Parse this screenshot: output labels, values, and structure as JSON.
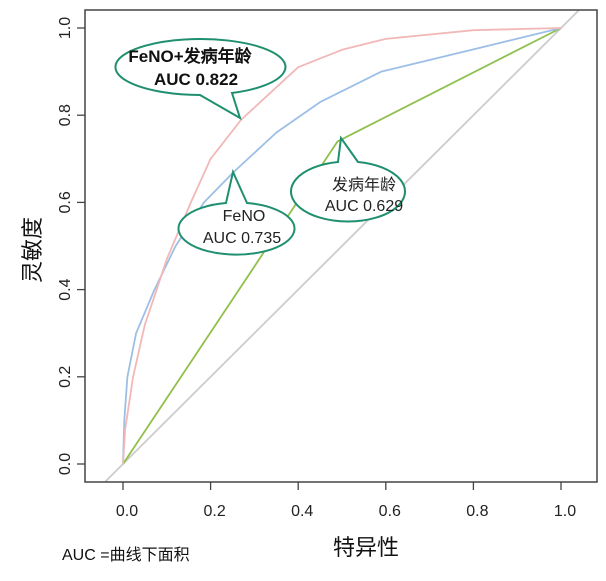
{
  "chart_data": {
    "type": "line",
    "title": "",
    "xlabel": "特异性",
    "ylabel": "灵敏度",
    "xlim": [
      -0.04,
      1.04
    ],
    "ylim": [
      -0.05,
      1.05
    ],
    "xticks": [
      "0.0",
      "0.2",
      "0.4",
      "0.6",
      "0.8",
      "1.0"
    ],
    "yticks": [
      "0.0",
      "0.2",
      "0.4",
      "0.6",
      "0.8",
      "1.0"
    ],
    "grid": false,
    "footnote": "AUC =曲线下面积",
    "colors": {
      "combined": "#f2b8b8",
      "feno": "#9dbfe6",
      "age": "#8fbf4d",
      "reference": "#cccccc",
      "callout": "#1f8f6f"
    },
    "series": [
      {
        "name": "FeNO+发病年龄",
        "auc_label": "AUC 0.822",
        "color": "#f2b8b8",
        "points": [
          [
            0,
            0
          ],
          [
            0.005,
            0.08
          ],
          [
            0.023,
            0.2
          ],
          [
            0.05,
            0.32
          ],
          [
            0.077,
            0.4
          ],
          [
            0.1,
            0.47
          ],
          [
            0.155,
            0.6
          ],
          [
            0.2,
            0.7
          ],
          [
            0.27,
            0.79
          ],
          [
            0.4,
            0.91
          ],
          [
            0.5,
            0.95
          ],
          [
            0.6,
            0.975
          ],
          [
            0.8,
            0.995
          ],
          [
            1,
            1
          ]
        ]
      },
      {
        "name": "FeNO",
        "auc_label": "AUC 0.735",
        "color": "#9dbfe6",
        "points": [
          [
            0,
            0
          ],
          [
            0.003,
            0.1
          ],
          [
            0.01,
            0.2
          ],
          [
            0.03,
            0.3
          ],
          [
            0.072,
            0.4
          ],
          [
            0.12,
            0.5
          ],
          [
            0.185,
            0.6
          ],
          [
            0.253,
            0.67
          ],
          [
            0.35,
            0.76
          ],
          [
            0.45,
            0.83
          ],
          [
            0.59,
            0.9
          ],
          [
            0.82,
            0.956
          ],
          [
            1,
            1
          ]
        ]
      },
      {
        "name": "发病年龄",
        "auc_label": "AUC 0.629",
        "color": "#8fbf4d",
        "points": [
          [
            0,
            0
          ],
          [
            0.49,
            0.74
          ],
          [
            1,
            1
          ]
        ]
      },
      {
        "name": "reference",
        "color": "#cccccc",
        "points": [
          [
            -0.04,
            -0.04
          ],
          [
            1.04,
            1.04
          ]
        ]
      }
    ]
  }
}
